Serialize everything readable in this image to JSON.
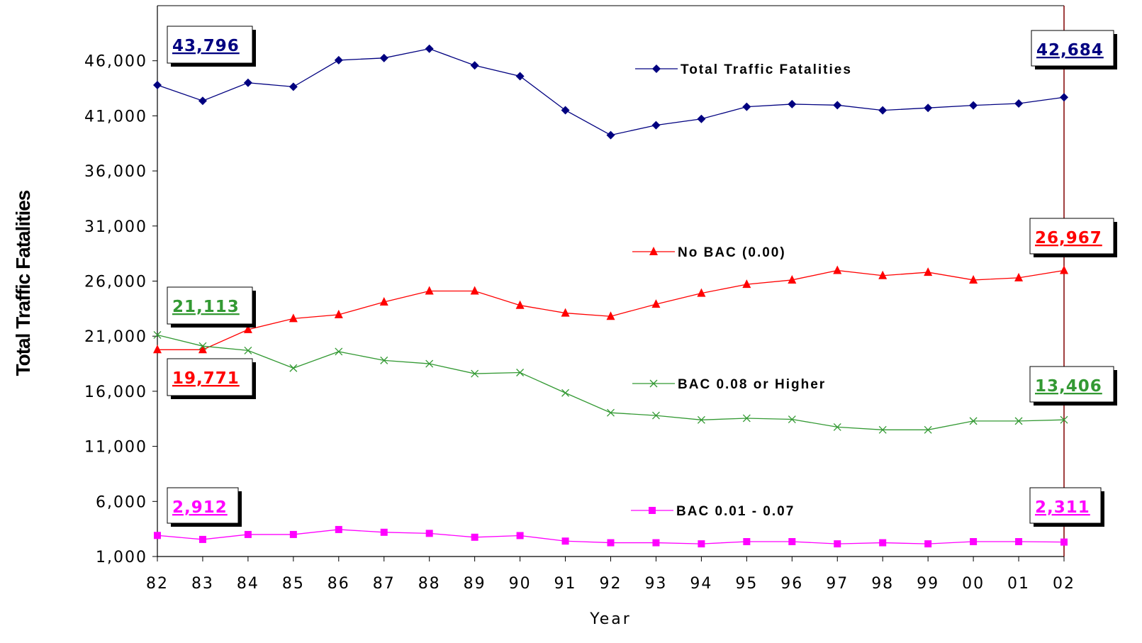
{
  "chart_data": {
    "type": "line",
    "xlabel": "Year",
    "ylabel": "Total Traffic Fatalities",
    "ylim": [
      1000,
      51000
    ],
    "yticks": [
      "1,000",
      "6,000",
      "11,000",
      "16,000",
      "21,000",
      "26,000",
      "31,000",
      "36,000",
      "41,000",
      "46,000"
    ],
    "categories": [
      "82",
      "83",
      "84",
      "85",
      "86",
      "87",
      "88",
      "89",
      "90",
      "91",
      "92",
      "93",
      "94",
      "95",
      "96",
      "97",
      "98",
      "99",
      "00",
      "01",
      "02"
    ],
    "grid": false,
    "series": [
      {
        "name": "Total Traffic Fatalities",
        "color": "#000080",
        "marker": "diamond",
        "values": [
          43796,
          42365,
          44000,
          43640,
          46050,
          46250,
          47090,
          45580,
          44600,
          41510,
          39250,
          40150,
          40720,
          41820,
          42060,
          41970,
          41500,
          41720,
          41950,
          42120,
          42684
        ]
      },
      {
        "name": "No BAC (0.00)",
        "color": "#ff0000",
        "marker": "triangle",
        "values": [
          19771,
          19771,
          21600,
          22600,
          22950,
          24100,
          25100,
          25100,
          23800,
          23100,
          22800,
          23900,
          24900,
          25700,
          26100,
          26967,
          26500,
          26800,
          26100,
          26300,
          26967
        ]
      },
      {
        "name": "BAC 0.08 or Higher",
        "color": "#339933",
        "marker": "x",
        "values": [
          21113,
          20100,
          19700,
          18100,
          19600,
          18800,
          18500,
          17600,
          17700,
          15850,
          14050,
          13800,
          13400,
          13550,
          13450,
          12750,
          12500,
          12500,
          13300,
          13300,
          13406
        ]
      },
      {
        "name": "BAC 0.01 - 0.07",
        "color": "#ff00ff",
        "marker": "square",
        "values": [
          2912,
          2550,
          3000,
          3000,
          3450,
          3200,
          3100,
          2750,
          2900,
          2400,
          2250,
          2250,
          2150,
          2350,
          2350,
          2150,
          2250,
          2150,
          2350,
          2350,
          2311
        ]
      }
    ],
    "callouts": [
      {
        "text": "43,796",
        "color": "#000080",
        "year": "82",
        "series": "Total Traffic Fatalities"
      },
      {
        "text": "42,684",
        "color": "#000080",
        "year": "02",
        "series": "Total Traffic Fatalities"
      },
      {
        "text": "21,113",
        "color": "#339933",
        "year": "82",
        "series": "BAC 0.08 or Higher"
      },
      {
        "text": "19,771",
        "color": "#ff0000",
        "year": "82",
        "series": "No BAC (0.00)"
      },
      {
        "text": "26,967",
        "color": "#ff0000",
        "year": "02",
        "series": "No BAC (0.00)"
      },
      {
        "text": "13,406",
        "color": "#339933",
        "year": "02",
        "series": "BAC 0.08 or Higher"
      },
      {
        "text": "2,912",
        "color": "#ff00ff",
        "year": "82",
        "series": "BAC 0.01 - 0.07"
      },
      {
        "text": "2,311",
        "color": "#ff00ff",
        "year": "02",
        "series": "BAC 0.01 - 0.07"
      }
    ],
    "legend_placement": "inline-right-of-center"
  }
}
